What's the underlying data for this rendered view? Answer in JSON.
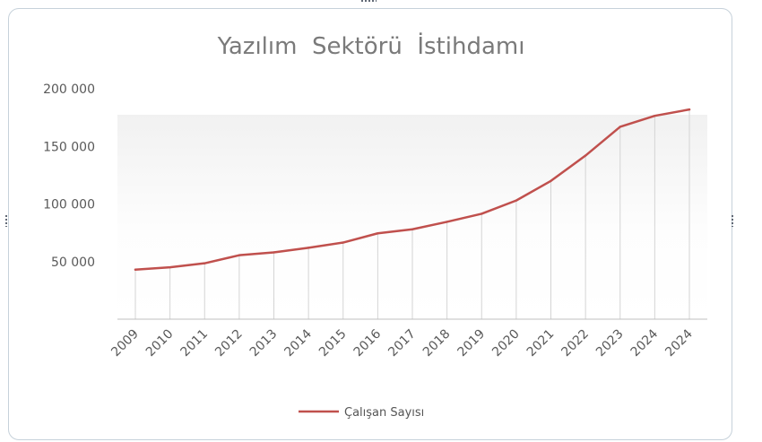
{
  "chart_data": {
    "type": "line",
    "title": "Yazılım  Sektörü  İstihdamı",
    "xlabel": "",
    "ylabel": "",
    "categories": [
      "2009",
      "2010",
      "2011",
      "2012",
      "2013",
      "2014",
      "2015",
      "2016",
      "2017",
      "2018",
      "2019",
      "2020",
      "2021",
      "2022",
      "2023",
      "2024",
      "2024"
    ],
    "series": [
      {
        "name": "Çalışan Sayısı",
        "color": "#c0504d",
        "values": [
          43000,
          45000,
          48500,
          55500,
          58000,
          62000,
          66500,
          74500,
          78000,
          84500,
          91500,
          103000,
          120000,
          142000,
          167000,
          176500,
          182000
        ]
      }
    ],
    "y_ticks": [
      50000,
      100000,
      150000,
      200000
    ],
    "y_tick_labels": [
      "50 000",
      "100 000",
      "150 000",
      "200 000"
    ],
    "ylim": [
      0,
      200000
    ],
    "grid": "vertical-drop-lines",
    "legend_position": "bottom"
  }
}
